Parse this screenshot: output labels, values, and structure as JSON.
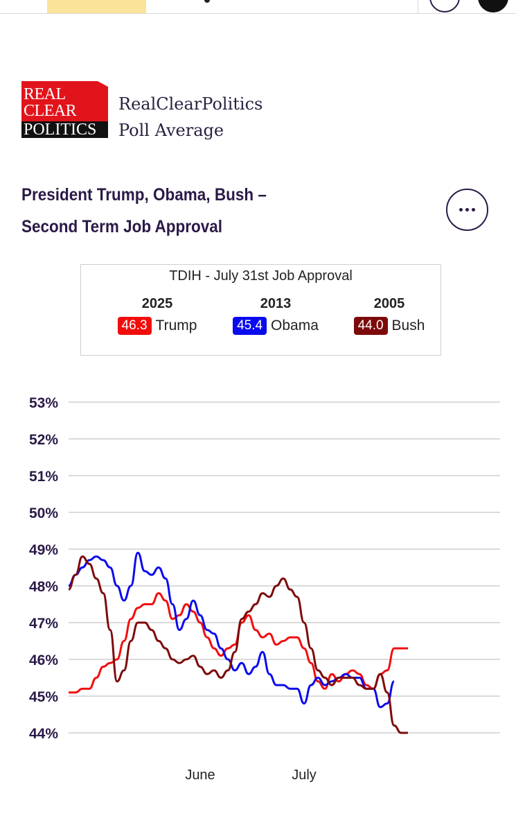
{
  "brand": {
    "logo_lines": [
      "REAL",
      "CLEAR",
      "POLITICS"
    ],
    "line1": "RealClearPolitics",
    "line2": "Poll Average"
  },
  "chart_title_line1": "President Trump, Obama, Bush –",
  "chart_title_line2": "Second Term Job Approval",
  "menu_icon": "more-horizontal-icon",
  "tdih": {
    "header": "TDIH - July 31st Job Approval",
    "entries": [
      {
        "year": "2025",
        "value": "46.3",
        "name": "Trump",
        "color": "#f20d0d"
      },
      {
        "year": "2013",
        "value": "45.4",
        "name": "Obama",
        "color": "#0a0aee"
      },
      {
        "year": "2005",
        "value": "44.0",
        "name": "Bush",
        "color": "#7d0a0a"
      }
    ]
  },
  "chart_data": {
    "type": "line",
    "title": "President Trump, Obama, Bush – Second Term Job Approval",
    "xlabel": "",
    "ylabel": "",
    "x_tick_labels": [
      {
        "label": "June",
        "day": 38
      },
      {
        "label": "July",
        "day": 68
      }
    ],
    "y_ticks": [
      "53%",
      "52%",
      "51%",
      "50%",
      "49%",
      "48%",
      "47%",
      "46%",
      "45%",
      "44%"
    ],
    "ylim": [
      44,
      53
    ],
    "grid": true,
    "x": [
      0,
      2,
      4,
      6,
      8,
      10,
      12,
      14,
      16,
      18,
      20,
      22,
      24,
      26,
      28,
      30,
      32,
      34,
      36,
      38,
      40,
      42,
      44,
      46,
      48,
      50,
      52,
      54,
      56,
      58,
      60,
      62,
      64,
      66,
      68,
      70,
      72,
      74,
      76,
      78,
      80,
      82,
      84,
      86,
      88,
      90,
      92,
      94,
      96,
      98,
      100,
      102,
      104,
      106
    ],
    "series": [
      {
        "name": "Trump",
        "color": "#f20d0d",
        "values": [
          45.1,
          45.1,
          45.2,
          45.2,
          45.5,
          45.8,
          45.9,
          46.0,
          46.5,
          47.1,
          47.4,
          47.5,
          47.5,
          47.8,
          47.6,
          47.1,
          47.2,
          47.5,
          47.3,
          47.0,
          46.6,
          46.3,
          46.1,
          46.3,
          46.4,
          47.0,
          47.2,
          46.8,
          46.6,
          46.7,
          46.4,
          46.5,
          46.6,
          46.6,
          46.3,
          45.9,
          45.4,
          45.2,
          45.6,
          45.4,
          45.6,
          45.7,
          45.6,
          45.3,
          45.2,
          45.6,
          45.7,
          46.3,
          46.3,
          46.3,
          null,
          null,
          null,
          null
        ]
      },
      {
        "name": "Obama",
        "color": "#0a0aee",
        "values": [
          48.0,
          48.3,
          48.5,
          48.7,
          48.8,
          48.7,
          48.5,
          48.0,
          47.6,
          48.0,
          48.9,
          48.4,
          48.3,
          48.5,
          48.2,
          47.5,
          46.8,
          47.1,
          47.6,
          47.2,
          46.8,
          46.7,
          46.3,
          46.0,
          45.7,
          45.9,
          45.6,
          45.8,
          46.2,
          45.6,
          45.3,
          45.3,
          45.2,
          45.2,
          44.8,
          45.3,
          45.5,
          45.3,
          45.4,
          45.5,
          45.6,
          45.5,
          45.5,
          45.2,
          45.2,
          44.7,
          44.8,
          45.4,
          null,
          null,
          null,
          null,
          null,
          null
        ]
      },
      {
        "name": "Bush",
        "color": "#7d0a0a",
        "values": [
          47.9,
          48.3,
          48.8,
          48.6,
          48.2,
          47.8,
          46.8,
          45.4,
          45.7,
          46.5,
          47.0,
          47.0,
          46.8,
          46.5,
          46.3,
          46.0,
          45.9,
          46.0,
          46.1,
          45.8,
          45.6,
          45.7,
          45.5,
          45.7,
          46.2,
          47.1,
          47.3,
          47.5,
          47.8,
          47.7,
          48.0,
          48.2,
          47.9,
          47.7,
          47.0,
          46.3,
          45.7,
          45.5,
          45.3,
          45.5,
          45.5,
          45.5,
          45.3,
          45.2,
          45.2,
          45.6,
          45.1,
          44.2,
          44.0,
          44.0,
          null,
          null,
          null,
          null
        ]
      }
    ]
  }
}
